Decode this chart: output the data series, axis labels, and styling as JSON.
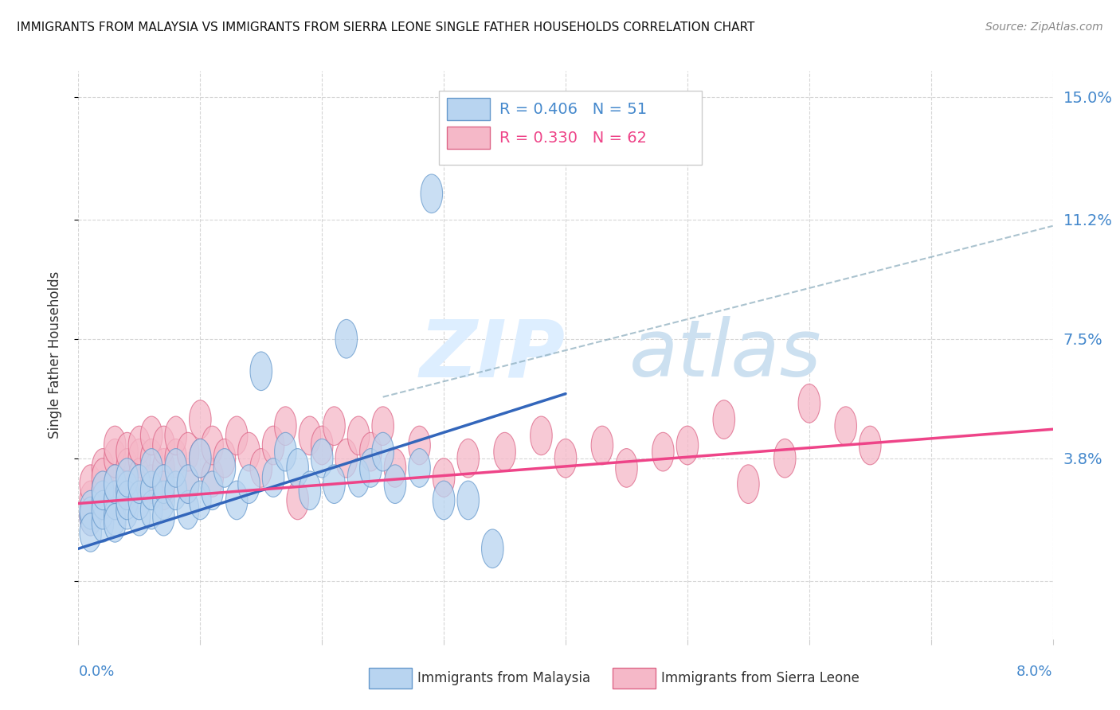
{
  "title": "IMMIGRANTS FROM MALAYSIA VS IMMIGRANTS FROM SIERRA LEONE SINGLE FATHER HOUSEHOLDS CORRELATION CHART",
  "source": "Source: ZipAtlas.com",
  "ylabel": "Single Father Households",
  "ytick_values": [
    0.0,
    0.038,
    0.075,
    0.112,
    0.15
  ],
  "ytick_labels": [
    "",
    "3.8%",
    "7.5%",
    "11.2%",
    "15.0%"
  ],
  "xlim": [
    0.0,
    0.08
  ],
  "ylim": [
    -0.018,
    0.158
  ],
  "color_malaysia_fill": "#b8d4f0",
  "color_malaysia_edge": "#6699cc",
  "color_sierra_fill": "#f5b8c8",
  "color_sierra_edge": "#dd6688",
  "color_malaysia_line": "#3366bb",
  "color_sierra_line": "#ee4488",
  "color_dashed": "#88aabb",
  "color_right_labels": "#4488cc",
  "malaysia_x": [
    0.001,
    0.001,
    0.001,
    0.002,
    0.002,
    0.002,
    0.002,
    0.003,
    0.003,
    0.003,
    0.003,
    0.004,
    0.004,
    0.004,
    0.004,
    0.005,
    0.005,
    0.005,
    0.006,
    0.006,
    0.006,
    0.007,
    0.007,
    0.007,
    0.008,
    0.008,
    0.009,
    0.009,
    0.01,
    0.01,
    0.011,
    0.012,
    0.013,
    0.014,
    0.015,
    0.016,
    0.017,
    0.018,
    0.019,
    0.02,
    0.021,
    0.022,
    0.023,
    0.024,
    0.025,
    0.026,
    0.028,
    0.029,
    0.03,
    0.032,
    0.034
  ],
  "malaysia_y": [
    0.02,
    0.022,
    0.015,
    0.018,
    0.025,
    0.022,
    0.028,
    0.02,
    0.025,
    0.03,
    0.018,
    0.022,
    0.028,
    0.025,
    0.032,
    0.02,
    0.025,
    0.03,
    0.022,
    0.028,
    0.035,
    0.025,
    0.03,
    0.02,
    0.028,
    0.035,
    0.022,
    0.03,
    0.025,
    0.038,
    0.028,
    0.035,
    0.025,
    0.03,
    0.065,
    0.032,
    0.04,
    0.035,
    0.028,
    0.038,
    0.03,
    0.075,
    0.032,
    0.035,
    0.04,
    0.03,
    0.035,
    0.12,
    0.025,
    0.025,
    0.01
  ],
  "sierra_x": [
    0.001,
    0.001,
    0.001,
    0.002,
    0.002,
    0.002,
    0.002,
    0.003,
    0.003,
    0.003,
    0.003,
    0.004,
    0.004,
    0.004,
    0.005,
    0.005,
    0.005,
    0.006,
    0.006,
    0.006,
    0.007,
    0.007,
    0.007,
    0.008,
    0.008,
    0.009,
    0.009,
    0.01,
    0.01,
    0.011,
    0.011,
    0.012,
    0.013,
    0.014,
    0.015,
    0.016,
    0.017,
    0.018,
    0.019,
    0.02,
    0.021,
    0.022,
    0.023,
    0.024,
    0.025,
    0.026,
    0.028,
    0.03,
    0.032,
    0.035,
    0.038,
    0.04,
    0.043,
    0.045,
    0.048,
    0.05,
    0.053,
    0.055,
    0.058,
    0.06,
    0.063,
    0.065
  ],
  "sierra_y": [
    0.025,
    0.03,
    0.02,
    0.028,
    0.035,
    0.025,
    0.032,
    0.03,
    0.038,
    0.025,
    0.042,
    0.035,
    0.028,
    0.04,
    0.038,
    0.032,
    0.042,
    0.03,
    0.038,
    0.045,
    0.035,
    0.028,
    0.042,
    0.038,
    0.045,
    0.03,
    0.04,
    0.038,
    0.05,
    0.032,
    0.042,
    0.038,
    0.045,
    0.04,
    0.035,
    0.042,
    0.048,
    0.025,
    0.045,
    0.042,
    0.048,
    0.038,
    0.045,
    0.04,
    0.048,
    0.035,
    0.042,
    0.032,
    0.038,
    0.04,
    0.045,
    0.038,
    0.042,
    0.035,
    0.04,
    0.042,
    0.05,
    0.03,
    0.038,
    0.055,
    0.048,
    0.042
  ],
  "malaysia_line_x0": 0.0,
  "malaysia_line_y0": 0.01,
  "malaysia_line_x1": 0.04,
  "malaysia_line_y1": 0.058,
  "sierra_line_x0": 0.0,
  "sierra_line_y0": 0.024,
  "sierra_line_x1": 0.08,
  "sierra_line_y1": 0.047,
  "dashed_line_x0": 0.025,
  "dashed_line_y0": 0.057,
  "dashed_line_x1": 0.08,
  "dashed_line_y1": 0.11
}
